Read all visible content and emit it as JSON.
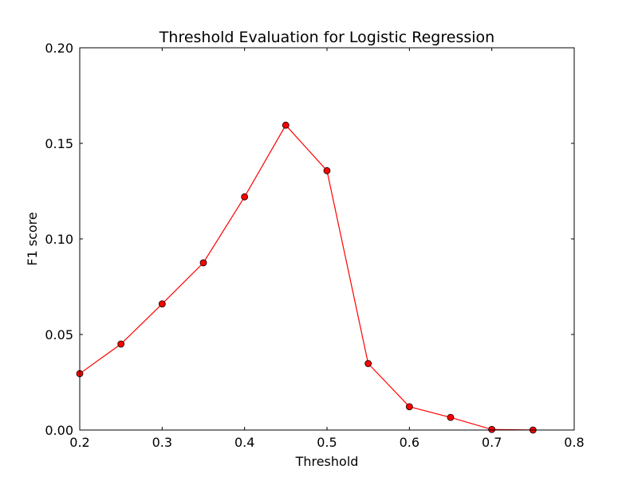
{
  "chart_data": {
    "type": "line",
    "title": "Threshold Evaluation for Logistic Regression",
    "xlabel": "Threshold",
    "ylabel": "F1 score",
    "xlim": [
      0.2,
      0.8
    ],
    "ylim": [
      0.0,
      0.2
    ],
    "x_ticks": [
      "0.2",
      "0.3",
      "0.4",
      "0.5",
      "0.6",
      "0.7",
      "0.8"
    ],
    "y_ticks": [
      "0.00",
      "0.05",
      "0.10",
      "0.15",
      "0.20"
    ],
    "grid": false,
    "legend": "none",
    "series": [
      {
        "color": "#ff0000",
        "marker": "circle",
        "x": [
          0.2,
          0.25,
          0.3,
          0.35,
          0.4,
          0.45,
          0.5,
          0.55,
          0.6,
          0.65,
          0.7,
          0.75
        ],
        "y": [
          0.0295,
          0.045,
          0.066,
          0.0875,
          0.122,
          0.1595,
          0.1357,
          0.0348,
          0.0122,
          0.0066,
          0.0003,
          0.0
        ]
      }
    ]
  }
}
